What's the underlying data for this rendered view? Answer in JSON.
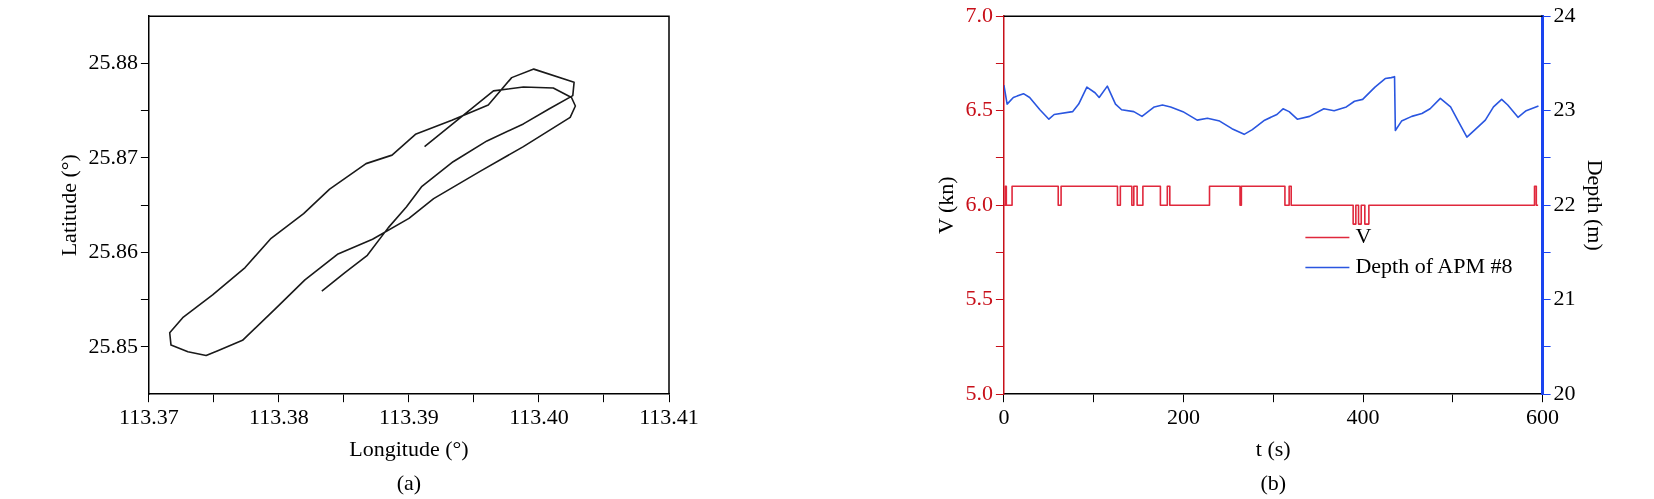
{
  "chart_data": [
    {
      "type": "line",
      "xlabel": "Longitude (°)",
      "ylabel": "Latitude (°)",
      "annotations": [
        "(a)"
      ],
      "color": "#1a1a1a",
      "grid": false,
      "marker": "none",
      "x": [
        113.3912,
        113.3965,
        113.3988,
        113.4011,
        113.4025,
        113.4028,
        113.4024,
        113.3988,
        113.3955,
        113.3919,
        113.39,
        113.3872,
        113.3845,
        113.382,
        113.3797,
        113.3772,
        113.3753,
        113.3744,
        113.373,
        113.3717,
        113.3716,
        113.3726,
        113.3749,
        113.3774,
        113.3794,
        113.3819,
        113.3839,
        113.3867,
        113.3887,
        113.3905,
        113.3933,
        113.3961,
        113.3979,
        113.3996,
        113.4027,
        113.4026,
        113.4008,
        113.3988,
        113.396,
        113.3934,
        113.391,
        113.3898,
        113.3884,
        113.3868,
        113.3851,
        113.3833
      ],
      "values": [
        25.8712,
        25.8771,
        25.8775,
        25.8774,
        25.8764,
        25.8755,
        25.8743,
        25.8712,
        25.8686,
        25.8657,
        25.8636,
        25.8614,
        25.8598,
        25.8571,
        25.854,
        25.8507,
        25.8496,
        25.8491,
        25.8495,
        25.8502,
        25.8515,
        25.8531,
        25.8555,
        25.8584,
        25.8615,
        25.8641,
        25.8667,
        25.8694,
        25.8703,
        25.8725,
        25.874,
        25.8756,
        25.8785,
        25.8794,
        25.878,
        25.8766,
        25.8752,
        25.8736,
        25.8718,
        25.8696,
        25.867,
        25.8648,
        25.8626,
        25.8597,
        25.8579,
        25.8559
      ],
      "xlim": [
        113.37,
        113.41
      ],
      "ylim": [
        25.845,
        25.885
      ],
      "xticks": [
        {
          "value": 113.37,
          "label": "113.37"
        },
        {
          "value": 113.375,
          "label": null
        },
        {
          "value": 113.38,
          "label": "113.38"
        },
        {
          "value": 113.385,
          "label": null
        },
        {
          "value": 113.39,
          "label": "113.39"
        },
        {
          "value": 113.395,
          "label": null
        },
        {
          "value": 113.4,
          "label": "113.40"
        },
        {
          "value": 113.405,
          "label": null
        },
        {
          "value": 113.41,
          "label": "113.41"
        }
      ],
      "yticks": [
        {
          "value": 25.85,
          "label": "25.85"
        },
        {
          "value": 25.855,
          "label": null
        },
        {
          "value": 25.86,
          "label": "25.86"
        },
        {
          "value": 25.865,
          "label": null
        },
        {
          "value": 25.87,
          "label": "25.87"
        },
        {
          "value": 25.875,
          "label": null
        },
        {
          "value": 25.88,
          "label": "25.88"
        }
      ]
    },
    {
      "type": "line",
      "xlabel": "t (s)",
      "ylabel": "V (kn)",
      "y2label": "Depth (m)",
      "annotations": [
        "(b)"
      ],
      "grid": false,
      "legend": "right",
      "marker": "none",
      "series": [
        {
          "name": "V",
          "type": "step",
          "color": "#e0283c",
          "x": [
            0,
            1.5,
            2.7,
            9.1,
            60.5,
            63.7,
            126.5,
            129.7,
            142.5,
            144.7,
            148.4,
            154.8,
            174.3,
            182,
            184.8,
            229,
            263,
            264.5,
            313,
            317.7,
            320,
            389,
            392,
            395,
            398,
            402,
            406.5,
            591,
            593,
            595
          ],
          "values": [
            6.0,
            6.1,
            6.0,
            6.1,
            6.0,
            6.1,
            6.0,
            6.1,
            6.0,
            6.1,
            6.0,
            6.1,
            6.0,
            6.1,
            6.0,
            6.1,
            6.0,
            6.1,
            6.0,
            6.1,
            6.0,
            5.9,
            6.0,
            5.9,
            6.0,
            5.9,
            6.0,
            6.1,
            6.0,
            6.0
          ]
        },
        {
          "name": "Depth of APM #8",
          "type": "line",
          "axis": "y2",
          "color": "#2a56e0",
          "x": [
            0,
            3.6,
            10.5,
            21.8,
            28.7,
            40.1,
            50.1,
            56,
            76.5,
            83.3,
            92.4,
            101.5,
            106.1,
            115.2,
            124.3,
            131.1,
            144.7,
            153.8,
            167.5,
            176.6,
            185.7,
            199.4,
            215.3,
            226.7,
            240.3,
            254,
            267.6,
            276.7,
            290.4,
            304.1,
            310.9,
            317.7,
            326.8,
            340.5,
            356.4,
            367.8,
            381.4,
            390.5,
            399.6,
            413.3,
            424.7,
            431.5,
            435.1,
            436,
            442.9,
            454.3,
            465.6,
            474.7,
            486.1,
            497.5,
            506.6,
            515.7,
            524.8,
            536.2,
            545.3,
            554.4,
            561.2,
            572.6,
            581.7,
            595.4
          ],
          "values": [
            23.27,
            23.07,
            23.14,
            23.18,
            23.14,
            23.01,
            22.91,
            22.96,
            22.99,
            23.07,
            23.25,
            23.19,
            23.14,
            23.26,
            23.07,
            23.01,
            22.99,
            22.94,
            23.04,
            23.06,
            23.04,
            22.99,
            22.9,
            22.92,
            22.89,
            22.81,
            22.75,
            22.8,
            22.9,
            22.96,
            23.02,
            22.99,
            22.91,
            22.94,
            23.02,
            23,
            23.04,
            23.1,
            23.12,
            23.25,
            23.34,
            23.35,
            23.36,
            22.79,
            22.89,
            22.94,
            22.97,
            23.02,
            23.13,
            23.04,
            22.88,
            22.72,
            22.8,
            22.9,
            23.04,
            23.12,
            23.06,
            22.93,
            23,
            23.05
          ]
        }
      ],
      "xlim": [
        0,
        600
      ],
      "ylim": [
        5,
        7
      ],
      "y2lim": [
        20,
        24
      ],
      "xticks": [
        0,
        {
          "value": 100,
          "label": null
        },
        200,
        {
          "value": 300,
          "label": null
        },
        400,
        {
          "value": 500,
          "label": null
        },
        600
      ],
      "yticks": [
        {
          "value": 5,
          "label": "5.0"
        },
        {
          "value": 5.25,
          "label": null
        },
        {
          "value": 5.5,
          "label": "5.5"
        },
        {
          "value": 5.75,
          "label": null
        },
        {
          "value": 6,
          "label": "6.0"
        },
        {
          "value": 6.25,
          "label": null
        },
        {
          "value": 6.5,
          "label": "6.5"
        },
        {
          "value": 6.75,
          "label": null
        },
        {
          "value": 7,
          "label": "7.0"
        }
      ],
      "y2ticks": [
        20,
        {
          "value": 20.5,
          "label": null
        },
        21,
        {
          "value": 21.5,
          "label": null
        },
        22,
        {
          "value": 22.5,
          "label": null
        },
        23,
        {
          "value": 23.5,
          "label": null
        },
        24
      ]
    }
  ]
}
